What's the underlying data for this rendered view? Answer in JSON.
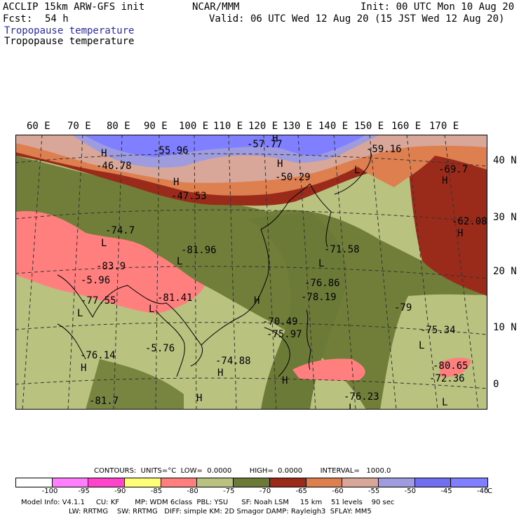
{
  "header": {
    "line1_left": "ACCLIP 15km ARW-GFS init",
    "line1_center": "NCAR/MMM",
    "line1_right": "Init: 00 UTC Mon 10 Aug 20",
    "fcst_label": "Fcst:",
    "fcst_value": "54 h",
    "valid": "Valid: 06 UTC Wed 12 Aug 20 (15 JST Wed 12 Aug 20)",
    "field_title_1": "Tropopause temperature",
    "field_title_2": "Tropopause temperature"
  },
  "map": {
    "lon_labels": [
      "60 E",
      "70 E",
      "80 E",
      "90 E",
      "100 E",
      "110 E",
      "120 E",
      "130 E",
      "140 E",
      "150 E",
      "160 E",
      "170 E"
    ],
    "lat_labels": [
      "40 N",
      "30 N",
      "20 N",
      "10 N",
      "0"
    ],
    "annotations": [
      {
        "text": "H",
        "kind": "high"
      },
      {
        "text": "-46.78"
      },
      {
        "text": "-55.96"
      },
      {
        "text": "-57.77"
      },
      {
        "text": "H",
        "kind": "high"
      },
      {
        "text": "-47.53"
      },
      {
        "text": "H",
        "kind": "high"
      },
      {
        "text": "-50.29"
      },
      {
        "text": "H",
        "kind": "high"
      },
      {
        "text": "-59.16"
      },
      {
        "text": "L",
        "kind": "low"
      },
      {
        "text": "-69.7"
      },
      {
        "text": "H",
        "kind": "high"
      },
      {
        "text": "-62.08"
      },
      {
        "text": "H",
        "kind": "high"
      },
      {
        "text": "-74.7"
      },
      {
        "text": "L",
        "kind": "low"
      },
      {
        "text": "-81.96"
      },
      {
        "text": "L",
        "kind": "low"
      },
      {
        "text": "-83.9"
      },
      {
        "text": "-5.96"
      },
      {
        "text": "H",
        "kind": "high"
      },
      {
        "text": "-77.55"
      },
      {
        "text": "L",
        "kind": "low"
      },
      {
        "text": "-81.41"
      },
      {
        "text": "L",
        "kind": "low"
      },
      {
        "text": "-71.58"
      },
      {
        "text": "L",
        "kind": "low"
      },
      {
        "text": "-76.86"
      },
      {
        "text": "-78.19"
      },
      {
        "text": "-79"
      },
      {
        "text": "H",
        "kind": "high"
      },
      {
        "text": "-70.49"
      },
      {
        "text": "-75.97"
      },
      {
        "text": "-5.76"
      },
      {
        "text": "L",
        "kind": "low"
      },
      {
        "text": "-76.14"
      },
      {
        "text": "H",
        "kind": "high"
      },
      {
        "text": "-74.88"
      },
      {
        "text": "H",
        "kind": "high"
      },
      {
        "text": "-75.34"
      },
      {
        "text": "L",
        "kind": "low"
      },
      {
        "text": "-80.65"
      },
      {
        "text": "-72.36"
      },
      {
        "text": "-81.7"
      },
      {
        "text": "H",
        "kind": "high"
      },
      {
        "text": "H",
        "kind": "high"
      },
      {
        "text": "-76.23"
      },
      {
        "text": "L",
        "kind": "low"
      }
    ]
  },
  "colorbar": {
    "contours_line": "CONTOURS:  UNITS=°C  LOW=  0.0000        HIGH=  0.0000        INTERVAL=   1000.0",
    "tick_labels": [
      "-100",
      "-95",
      "-90",
      "-85",
      "-80",
      "-75",
      "-70",
      "-65",
      "-60",
      "-55",
      "-50",
      "-45",
      "-40"
    ],
    "unit": "°C",
    "colors": [
      "#ffffff",
      "#ff7fff",
      "#ff44cc",
      "#ffff77",
      "#ff7f7f",
      "#b9c27f",
      "#6b7a36",
      "#9a2a1a",
      "#de7f50",
      "#d9a79a",
      "#9f9bdf",
      "#6f6fef",
      "#7f7fff"
    ]
  },
  "footer": {
    "line1": "Model Info: V4.1.1     CU: KF       MP: WDM 6class  PBL: YSU      SF: Noah LSM     15 km    51 levels    90 sec",
    "line2": "LW: RRTMG    SW: RRTMG   DIFF: simple KM: 2D Smagor DAMP: Rayleigh3  SFLAY: MM5"
  }
}
